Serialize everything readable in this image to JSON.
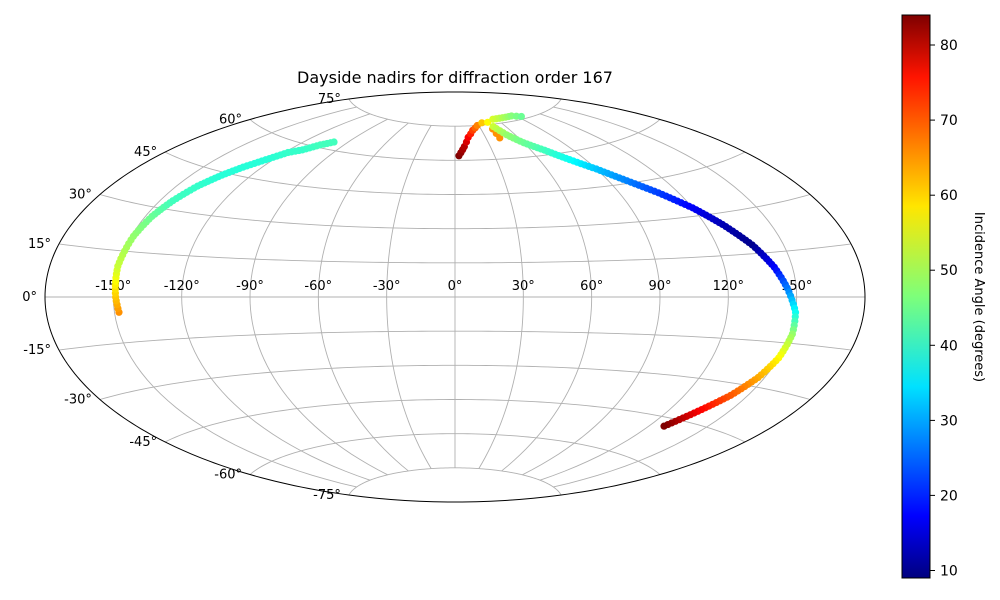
{
  "chart_data": {
    "type": "scatter",
    "projection": "aitoff",
    "title": "Dayside nadirs for diffraction order 167",
    "grid": true,
    "x_ticks": [
      "-150°",
      "-120°",
      "-90°",
      "-60°",
      "-30°",
      "0°",
      "30°",
      "60°",
      "90°",
      "120°",
      "150°"
    ],
    "y_ticks": [
      "75°",
      "60°",
      "45°",
      "30°",
      "15°",
      "0°",
      "-15°",
      "-30°",
      "-45°",
      "-60°",
      "-75°"
    ],
    "xlim": [
      -180,
      180
    ],
    "ylim": [
      -90,
      90
    ],
    "colorbar": {
      "label": "Incidence Angle (degrees)",
      "min": 9,
      "max": 84,
      "ticks": [
        "10",
        "20",
        "30",
        "40",
        "50",
        "60",
        "70",
        "80"
      ],
      "colormap": "jet"
    },
    "series": [
      {
        "longitude_deg": [
          -148,
          -149,
          -150,
          -149,
          -147,
          -144,
          -140,
          -135,
          -130,
          -124,
          -118,
          -112,
          -106,
          -100
        ],
        "latitude_deg": [
          -5,
          0,
          10,
          20,
          27,
          33,
          39,
          44,
          48,
          52,
          56,
          58,
          61,
          63
        ],
        "incidence_deg": [
          64,
          60,
          52,
          48,
          45,
          42,
          41,
          40,
          40,
          40,
          41,
          41,
          42,
          42
        ]
      },
      {
        "longitude_deg": [
          3,
          8,
          13,
          20,
          28,
          36,
          44
        ],
        "latitude_deg": [
          62,
          66,
          70,
          73,
          75,
          76,
          76
        ],
        "incidence_deg": [
          84,
          80,
          75,
          70,
          65,
          60,
          56
        ]
      },
      {
        "longitude_deg": [
          43,
          43,
          43
        ],
        "latitude_deg": [
          69,
          71,
          73
        ],
        "incidence_deg": [
          64,
          64,
          64
        ]
      },
      {
        "longitude_deg": [
          46,
          52,
          60,
          70,
          80,
          90,
          100,
          110,
          120,
          128,
          136,
          142,
          146,
          150,
          151,
          150,
          147,
          142,
          135,
          128
        ],
        "latitude_deg": [
          74,
          70,
          66,
          62,
          57,
          52,
          46,
          40,
          33,
          26,
          18,
          10,
          3,
          -5,
          -12,
          -20,
          -27,
          -34,
          -41,
          -48
        ],
        "incidence_deg": [
          52,
          48,
          45,
          42,
          38,
          33,
          28,
          23,
          18,
          13,
          10,
          18,
          27,
          38,
          48,
          56,
          62,
          68,
          75,
          84
        ]
      },
      {
        "longitude_deg": [
          55,
          65,
          75,
          85,
          95
        ],
        "latitude_deg": [
          77,
          77,
          77,
          77,
          76
        ],
        "incidence_deg": [
          53,
          51,
          49,
          47,
          45
        ]
      }
    ]
  }
}
